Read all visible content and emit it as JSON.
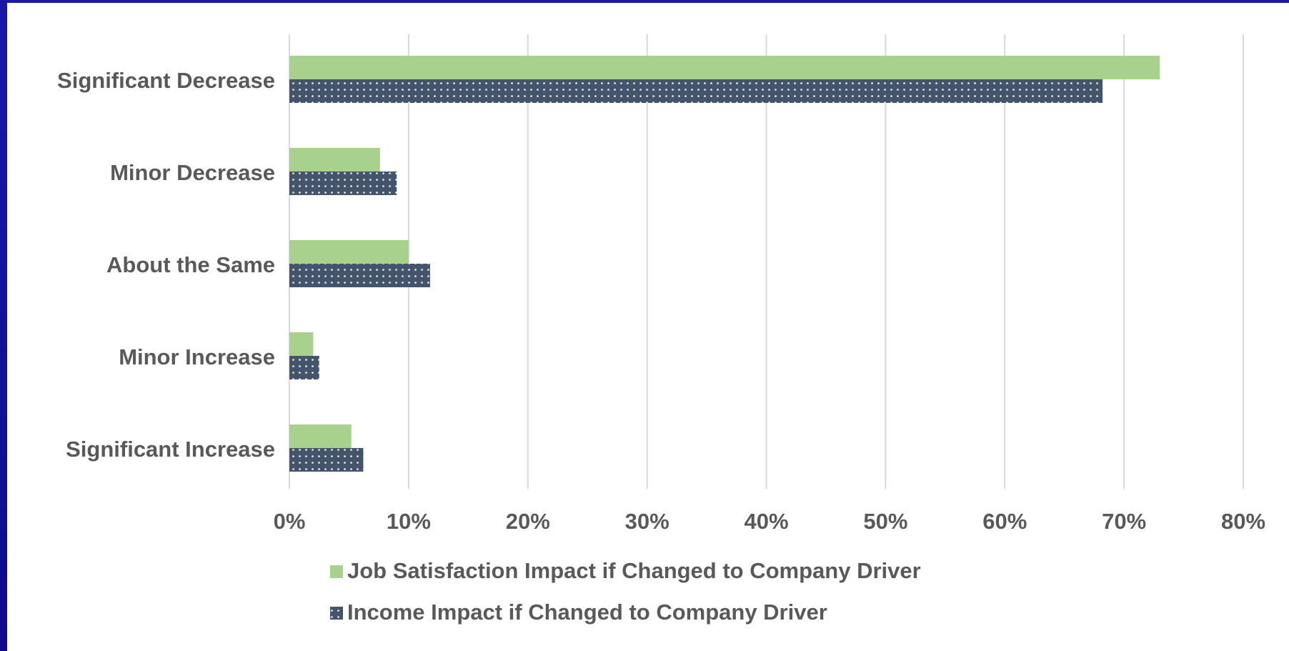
{
  "colors": {
    "series_1": "#a9d18e",
    "series_2": "#44546a",
    "gridline": "#d9d9d9",
    "text": "#595959"
  },
  "chart_data": {
    "type": "bar",
    "orientation": "horizontal",
    "categories": [
      "Significant Decrease",
      "Minor Decrease",
      "About the Same",
      "Minor Increase",
      "Significant Increase"
    ],
    "series": [
      {
        "name": "Job Satisfaction Impact if Changed to Company Driver",
        "values": [
          73,
          7.6,
          10,
          2,
          5.2
        ]
      },
      {
        "name": "Income Impact if Changed to Company Driver",
        "values": [
          68.2,
          9,
          11.8,
          2.5,
          6.2
        ]
      }
    ],
    "x_ticks": [
      "0%",
      "10%",
      "20%",
      "30%",
      "40%",
      "50%",
      "60%",
      "70%",
      "80%"
    ],
    "xlim": [
      0,
      80
    ],
    "grid": true,
    "legend_position": "bottom",
    "series_2_pattern": "dotted"
  }
}
